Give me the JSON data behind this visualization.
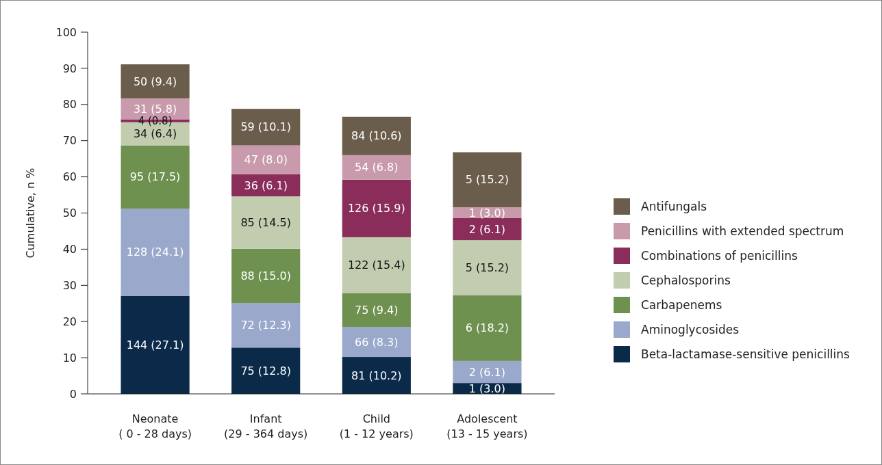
{
  "chart_data": {
    "type": "bar",
    "stacked": true,
    "ylabel": "Cumulative, n %",
    "categories": [
      "Neonate\n( 0 - 28 days)",
      "Infant\n(29 - 364 days)",
      "Child\n(1 - 12 years)",
      "Adolescent\n(13 - 15 years)"
    ],
    "ylim": [
      0,
      100
    ],
    "yticks": [
      0,
      10,
      20,
      30,
      40,
      50,
      60,
      70,
      80,
      90,
      100
    ],
    "legend": "right",
    "grid": false,
    "series": [
      {
        "name": "Beta-lactamase-sensitive penicillins",
        "color": "#0b2a4a",
        "values": [
          27.1,
          12.8,
          10.2,
          3.0
        ],
        "value_labels": [
          "144 (27.1)",
          "75 (12.8)",
          "81 (10.2)",
          "1 (3.0)"
        ]
      },
      {
        "name": "Aminoglycosides",
        "color": "#9aa8cc",
        "values": [
          24.1,
          12.3,
          8.3,
          6.1
        ],
        "value_labels": [
          "128 (24.1)",
          "72 (12.3)",
          "66 (8.3)",
          "2 (6.1)"
        ]
      },
      {
        "name": "Carbapenems",
        "color": "#6e9150",
        "values": [
          17.5,
          15.0,
          9.4,
          18.2
        ],
        "value_labels": [
          "95 (17.5)",
          "88 (15.0)",
          "75 (9.4)",
          "6 (18.2)"
        ]
      },
      {
        "name": "Cephalosporins",
        "color": "#c2cdb0",
        "values": [
          6.4,
          14.5,
          15.4,
          15.2
        ],
        "value_labels": [
          "34 (6.4)",
          "85 (14.5)",
          "122 (15.4)",
          "5 (15.2)"
        ]
      },
      {
        "name": "Combinations of penicillins",
        "color": "#8b2d5a",
        "values": [
          0.8,
          6.1,
          15.9,
          6.1
        ],
        "value_labels": [
          "4 (0.8)",
          "36 (6.1)",
          "126 (15.9)",
          "2 (6.1)"
        ]
      },
      {
        "name": "Penicillins with extended spectrum",
        "color": "#c99aab",
        "values": [
          5.8,
          8.0,
          6.8,
          3.0
        ],
        "value_labels": [
          "31 (5.8)",
          "47 (8.0)",
          "54 (6.8)",
          "1 (3.0)"
        ]
      },
      {
        "name": "Antifungals",
        "color": "#6b5d4b",
        "values": [
          9.4,
          10.1,
          10.6,
          15.2
        ],
        "value_labels": [
          "50 (9.4)",
          "59 (10.1)",
          "84 (10.6)",
          "5 (15.2)"
        ]
      }
    ]
  }
}
